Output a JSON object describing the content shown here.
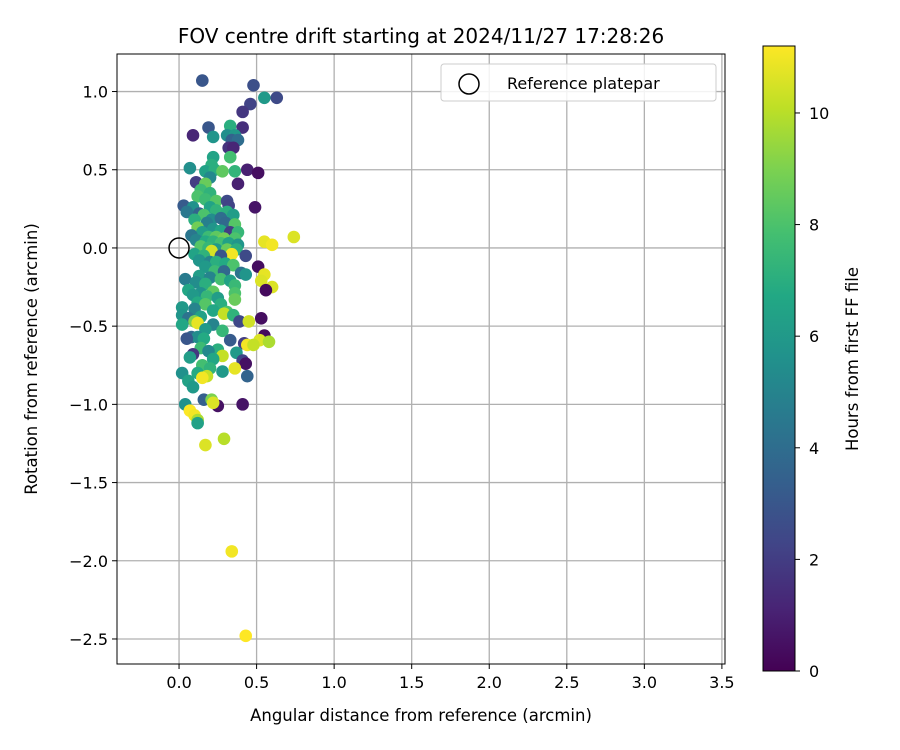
{
  "chart_data": {
    "type": "scatter",
    "title": "FOV centre drift starting at 2024/11/27 17:28:26",
    "xlabel": "Angular distance from reference (arcmin)",
    "ylabel": "Rotation from reference (arcmin)",
    "xlim": [
      -0.4,
      3.52
    ],
    "ylim": [
      -2.66,
      1.24
    ],
    "x_ticks": [
      0.0,
      0.5,
      1.0,
      1.5,
      2.0,
      2.5,
      3.0,
      3.5
    ],
    "x_tick_labels": [
      "0.0",
      "0.5",
      "1.0",
      "1.5",
      "2.0",
      "2.5",
      "3.0",
      "3.5"
    ],
    "y_ticks": [
      1.0,
      0.5,
      0.0,
      -0.5,
      -1.0,
      -1.5,
      -2.0,
      -2.5
    ],
    "y_tick_labels": [
      "1.0",
      "0.5",
      "0.0",
      "−0.5",
      "−1.0",
      "−1.5",
      "−2.0",
      "−2.5"
    ],
    "grid": true,
    "legend": {
      "label": "Reference platepar",
      "position": "top-right"
    },
    "reference_point": {
      "x": 0.0,
      "y": 0.0
    },
    "colorbar": {
      "label": "Hours from first FF file",
      "colormap": "viridis",
      "range": [
        0,
        11.2
      ],
      "ticks": [
        0,
        2,
        4,
        6,
        8,
        10
      ],
      "tick_labels": [
        "0",
        "2",
        "4",
        "6",
        "8",
        "10"
      ]
    },
    "points": [
      {
        "x": 0.15,
        "y": 1.07,
        "h": 3.0
      },
      {
        "x": 0.48,
        "y": 1.04,
        "h": 2.7
      },
      {
        "x": 0.55,
        "y": 0.96,
        "h": 6.0
      },
      {
        "x": 0.63,
        "y": 0.96,
        "h": 2.5
      },
      {
        "x": 0.46,
        "y": 0.92,
        "h": 2.2
      },
      {
        "x": 0.41,
        "y": 0.87,
        "h": 1.8
      },
      {
        "x": 0.33,
        "y": 0.78,
        "h": 7.0
      },
      {
        "x": 0.19,
        "y": 0.77,
        "h": 3.0
      },
      {
        "x": 0.41,
        "y": 0.77,
        "h": 1.5
      },
      {
        "x": 0.09,
        "y": 0.72,
        "h": 1.2
      },
      {
        "x": 0.31,
        "y": 0.72,
        "h": 5.5
      },
      {
        "x": 0.36,
        "y": 0.72,
        "h": 6.0
      },
      {
        "x": 0.22,
        "y": 0.71,
        "h": 5.8
      },
      {
        "x": 0.34,
        "y": 0.69,
        "h": 3.5
      },
      {
        "x": 0.38,
        "y": 0.69,
        "h": 4.0
      },
      {
        "x": 0.32,
        "y": 0.64,
        "h": 1.6
      },
      {
        "x": 0.35,
        "y": 0.64,
        "h": 1.2
      },
      {
        "x": 0.22,
        "y": 0.58,
        "h": 6.5
      },
      {
        "x": 0.33,
        "y": 0.58,
        "h": 7.8
      },
      {
        "x": 0.21,
        "y": 0.53,
        "h": 7.0
      },
      {
        "x": 0.07,
        "y": 0.51,
        "h": 5.5
      },
      {
        "x": 0.17,
        "y": 0.49,
        "h": 6.4
      },
      {
        "x": 0.23,
        "y": 0.5,
        "h": 7.0
      },
      {
        "x": 0.28,
        "y": 0.49,
        "h": 8.4
      },
      {
        "x": 0.36,
        "y": 0.49,
        "h": 7.3
      },
      {
        "x": 0.44,
        "y": 0.5,
        "h": 1.0
      },
      {
        "x": 0.51,
        "y": 0.48,
        "h": 0.4
      },
      {
        "x": 0.2,
        "y": 0.45,
        "h": 5.2
      },
      {
        "x": 0.11,
        "y": 0.42,
        "h": 2.0
      },
      {
        "x": 0.17,
        "y": 0.41,
        "h": 8.6
      },
      {
        "x": 0.38,
        "y": 0.41,
        "h": 1.0
      },
      {
        "x": 0.14,
        "y": 0.37,
        "h": 7.6
      },
      {
        "x": 0.2,
        "y": 0.35,
        "h": 7.2
      },
      {
        "x": 0.12,
        "y": 0.33,
        "h": 8.0
      },
      {
        "x": 0.17,
        "y": 0.31,
        "h": 7.6
      },
      {
        "x": 0.24,
        "y": 0.3,
        "h": 8.2
      },
      {
        "x": 0.31,
        "y": 0.3,
        "h": 2.5
      },
      {
        "x": 0.03,
        "y": 0.27,
        "h": 3.2
      },
      {
        "x": 0.32,
        "y": 0.27,
        "h": 2.2
      },
      {
        "x": 0.49,
        "y": 0.26,
        "h": 0.6
      },
      {
        "x": 0.09,
        "y": 0.26,
        "h": 5.6
      },
      {
        "x": 0.2,
        "y": 0.26,
        "h": 6.5
      },
      {
        "x": 0.05,
        "y": 0.23,
        "h": 4.5
      },
      {
        "x": 0.13,
        "y": 0.22,
        "h": 3.6
      },
      {
        "x": 0.16,
        "y": 0.21,
        "h": 8.0
      },
      {
        "x": 0.24,
        "y": 0.24,
        "h": 7.2
      },
      {
        "x": 0.31,
        "y": 0.23,
        "h": 7.0
      },
      {
        "x": 0.35,
        "y": 0.21,
        "h": 6.2
      },
      {
        "x": 0.1,
        "y": 0.18,
        "h": 7.0
      },
      {
        "x": 0.21,
        "y": 0.18,
        "h": 5.4
      },
      {
        "x": 0.27,
        "y": 0.19,
        "h": 4.0
      },
      {
        "x": 0.18,
        "y": 0.16,
        "h": 4.8
      },
      {
        "x": 0.3,
        "y": 0.16,
        "h": 3.8
      },
      {
        "x": 0.36,
        "y": 0.15,
        "h": 8.2
      },
      {
        "x": 0.12,
        "y": 0.13,
        "h": 8.8
      },
      {
        "x": 0.22,
        "y": 0.12,
        "h": 5.8
      },
      {
        "x": 0.27,
        "y": 0.11,
        "h": 6.6
      },
      {
        "x": 0.33,
        "y": 0.1,
        "h": 2.0
      },
      {
        "x": 0.38,
        "y": 0.1,
        "h": 7.4
      },
      {
        "x": 0.15,
        "y": 0.1,
        "h": 6.2
      },
      {
        "x": 0.08,
        "y": 0.08,
        "h": 4.4
      },
      {
        "x": 0.19,
        "y": 0.07,
        "h": 7.6
      },
      {
        "x": 0.24,
        "y": 0.07,
        "h": 8.4
      },
      {
        "x": 0.29,
        "y": 0.06,
        "h": 8.8
      },
      {
        "x": 0.36,
        "y": 0.06,
        "h": 8.0
      },
      {
        "x": 0.11,
        "y": 0.05,
        "h": 5.0
      },
      {
        "x": 0.17,
        "y": 0.04,
        "h": 6.8
      },
      {
        "x": 0.22,
        "y": 0.04,
        "h": 7.2
      },
      {
        "x": 0.27,
        "y": 0.03,
        "h": 7.8
      },
      {
        "x": 0.32,
        "y": 0.03,
        "h": 6.4
      },
      {
        "x": 0.38,
        "y": 0.02,
        "h": 5.8
      },
      {
        "x": 0.14,
        "y": 0.01,
        "h": 8.2
      },
      {
        "x": 0.19,
        "y": 0.0,
        "h": 7.4
      },
      {
        "x": 0.24,
        "y": -0.01,
        "h": 6.0
      },
      {
        "x": 0.31,
        "y": -0.01,
        "h": 8.6
      },
      {
        "x": 0.37,
        "y": -0.01,
        "h": 7.0
      },
      {
        "x": 0.21,
        "y": -0.02,
        "h": 10.5
      },
      {
        "x": 0.34,
        "y": -0.04,
        "h": 11.0
      },
      {
        "x": 0.1,
        "y": -0.04,
        "h": 6.5
      },
      {
        "x": 0.16,
        "y": -0.05,
        "h": 7.2
      },
      {
        "x": 0.27,
        "y": -0.05,
        "h": 3.0
      },
      {
        "x": 0.43,
        "y": -0.05,
        "h": 2.5
      },
      {
        "x": 0.13,
        "y": -0.08,
        "h": 5.8
      },
      {
        "x": 0.2,
        "y": -0.09,
        "h": 5.0
      },
      {
        "x": 0.24,
        "y": -0.09,
        "h": 7.0
      },
      {
        "x": 0.3,
        "y": -0.1,
        "h": 6.8
      },
      {
        "x": 0.35,
        "y": -0.11,
        "h": 8.0
      },
      {
        "x": 0.17,
        "y": -0.12,
        "h": 6.0
      },
      {
        "x": 0.51,
        "y": -0.12,
        "h": 0.4
      },
      {
        "x": 0.23,
        "y": -0.15,
        "h": 7.6
      },
      {
        "x": 0.29,
        "y": -0.15,
        "h": 3.8
      },
      {
        "x": 0.4,
        "y": -0.16,
        "h": 4.2
      },
      {
        "x": 0.43,
        "y": -0.17,
        "h": 5.8
      },
      {
        "x": 0.55,
        "y": -0.17,
        "h": 10.8
      },
      {
        "x": 0.13,
        "y": -0.18,
        "h": 6.2
      },
      {
        "x": 0.2,
        "y": -0.19,
        "h": 5.0
      },
      {
        "x": 0.04,
        "y": -0.2,
        "h": 4.6
      },
      {
        "x": 0.27,
        "y": -0.2,
        "h": 7.8
      },
      {
        "x": 0.33,
        "y": -0.21,
        "h": 6.4
      },
      {
        "x": 0.53,
        "y": -0.21,
        "h": 10.6
      },
      {
        "x": 0.11,
        "y": -0.22,
        "h": 5.4
      },
      {
        "x": 0.17,
        "y": -0.23,
        "h": 7.0
      },
      {
        "x": 0.36,
        "y": -0.24,
        "h": 7.5
      },
      {
        "x": 0.6,
        "y": -0.25,
        "h": 10.6
      },
      {
        "x": 0.56,
        "y": -0.27,
        "h": 0.3
      },
      {
        "x": 0.06,
        "y": -0.27,
        "h": 6.6
      },
      {
        "x": 0.22,
        "y": -0.28,
        "h": 8.4
      },
      {
        "x": 0.14,
        "y": -0.29,
        "h": 5.6
      },
      {
        "x": 0.36,
        "y": -0.29,
        "h": 8.0
      },
      {
        "x": 0.09,
        "y": -0.3,
        "h": 6.0
      },
      {
        "x": 0.18,
        "y": -0.31,
        "h": 7.4
      },
      {
        "x": 0.25,
        "y": -0.32,
        "h": 6.2
      },
      {
        "x": 0.36,
        "y": -0.33,
        "h": 8.6
      },
      {
        "x": 0.12,
        "y": -0.35,
        "h": 6.8
      },
      {
        "x": 0.17,
        "y": -0.36,
        "h": 8.2
      },
      {
        "x": 0.27,
        "y": -0.36,
        "h": 7.0
      },
      {
        "x": 0.02,
        "y": -0.38,
        "h": 6.0
      },
      {
        "x": 0.1,
        "y": -0.39,
        "h": 5.0
      },
      {
        "x": 0.22,
        "y": -0.4,
        "h": 6.6
      },
      {
        "x": 0.31,
        "y": -0.41,
        "h": 8.0
      },
      {
        "x": 0.29,
        "y": -0.42,
        "h": 10.2
      },
      {
        "x": 0.35,
        "y": -0.43,
        "h": 7.2
      },
      {
        "x": 0.02,
        "y": -0.43,
        "h": 5.8
      },
      {
        "x": 0.14,
        "y": -0.44,
        "h": 6.4
      },
      {
        "x": 0.06,
        "y": -0.45,
        "h": 4.2
      },
      {
        "x": 0.53,
        "y": -0.45,
        "h": 0.4
      },
      {
        "x": 0.1,
        "y": -0.47,
        "h": 9.0
      },
      {
        "x": 0.39,
        "y": -0.47,
        "h": 2.4
      },
      {
        "x": 0.45,
        "y": -0.47,
        "h": 10.4
      },
      {
        "x": 0.12,
        "y": -0.48,
        "h": 10.8
      },
      {
        "x": 0.02,
        "y": -0.49,
        "h": 6.6
      },
      {
        "x": 0.22,
        "y": -0.49,
        "h": 5.0
      },
      {
        "x": 0.17,
        "y": -0.52,
        "h": 6.0
      },
      {
        "x": 0.28,
        "y": -0.53,
        "h": 7.4
      },
      {
        "x": 0.55,
        "y": -0.56,
        "h": 0.3
      },
      {
        "x": 0.08,
        "y": -0.57,
        "h": 3.8
      },
      {
        "x": 0.12,
        "y": -0.57,
        "h": 5.4
      },
      {
        "x": 0.16,
        "y": -0.58,
        "h": 6.8
      },
      {
        "x": 0.05,
        "y": -0.58,
        "h": 3.0
      },
      {
        "x": 0.33,
        "y": -0.59,
        "h": 3.2
      },
      {
        "x": 0.52,
        "y": -0.59,
        "h": 10.6
      },
      {
        "x": 0.58,
        "y": -0.6,
        "h": 9.8
      },
      {
        "x": 0.42,
        "y": -0.61,
        "h": 2.0
      },
      {
        "x": 0.44,
        "y": -0.62,
        "h": 11.0
      },
      {
        "x": 0.48,
        "y": -0.62,
        "h": 10.2
      },
      {
        "x": 0.14,
        "y": -0.64,
        "h": 7.6
      },
      {
        "x": 0.25,
        "y": -0.65,
        "h": 7.0
      },
      {
        "x": 0.19,
        "y": -0.66,
        "h": 5.2
      },
      {
        "x": 0.37,
        "y": -0.67,
        "h": 6.0
      },
      {
        "x": 0.09,
        "y": -0.68,
        "h": 1.8
      },
      {
        "x": 0.28,
        "y": -0.69,
        "h": 10.2
      },
      {
        "x": 0.07,
        "y": -0.7,
        "h": 6.2
      },
      {
        "x": 0.22,
        "y": -0.71,
        "h": 6.6
      },
      {
        "x": 0.41,
        "y": -0.72,
        "h": 2.2
      },
      {
        "x": 0.43,
        "y": -0.74,
        "h": 0.5
      },
      {
        "x": 0.15,
        "y": -0.75,
        "h": 7.8
      },
      {
        "x": 0.2,
        "y": -0.77,
        "h": 7.2
      },
      {
        "x": 0.36,
        "y": -0.77,
        "h": 10.8
      },
      {
        "x": 0.28,
        "y": -0.79,
        "h": 6.0
      },
      {
        "x": 0.02,
        "y": -0.8,
        "h": 5.6
      },
      {
        "x": 0.12,
        "y": -0.8,
        "h": 6.8
      },
      {
        "x": 0.18,
        "y": -0.82,
        "h": 10.2
      },
      {
        "x": 0.44,
        "y": -0.82,
        "h": 3.6
      },
      {
        "x": 0.15,
        "y": -0.83,
        "h": 11.0
      },
      {
        "x": 0.06,
        "y": -0.85,
        "h": 6.4
      },
      {
        "x": 0.09,
        "y": -0.89,
        "h": 6.0
      },
      {
        "x": 0.16,
        "y": -0.97,
        "h": 3.4
      },
      {
        "x": 0.21,
        "y": -0.97,
        "h": 9.0
      },
      {
        "x": 0.25,
        "y": -1.01,
        "h": 0.5
      },
      {
        "x": 0.41,
        "y": -1.0,
        "h": 0.6
      },
      {
        "x": 0.04,
        "y": -1.0,
        "h": 5.6
      },
      {
        "x": 0.22,
        "y": -0.99,
        "h": 10.6
      },
      {
        "x": 0.07,
        "y": -1.04,
        "h": 11.2
      },
      {
        "x": 0.1,
        "y": -1.07,
        "h": 11.0
      },
      {
        "x": 0.12,
        "y": -1.1,
        "h": 9.8
      },
      {
        "x": 0.12,
        "y": -1.12,
        "h": 6.4
      },
      {
        "x": 0.29,
        "y": -1.22,
        "h": 10.0
      },
      {
        "x": 0.17,
        "y": -1.26,
        "h": 10.6
      },
      {
        "x": 0.34,
        "y": -1.94,
        "h": 11.0
      },
      {
        "x": 0.43,
        "y": -2.48,
        "h": 11.2
      },
      {
        "x": 0.74,
        "y": 0.07,
        "h": 10.6
      },
      {
        "x": 0.55,
        "y": 0.04,
        "h": 10.8
      },
      {
        "x": 0.6,
        "y": 0.02,
        "h": 11.0
      }
    ]
  }
}
